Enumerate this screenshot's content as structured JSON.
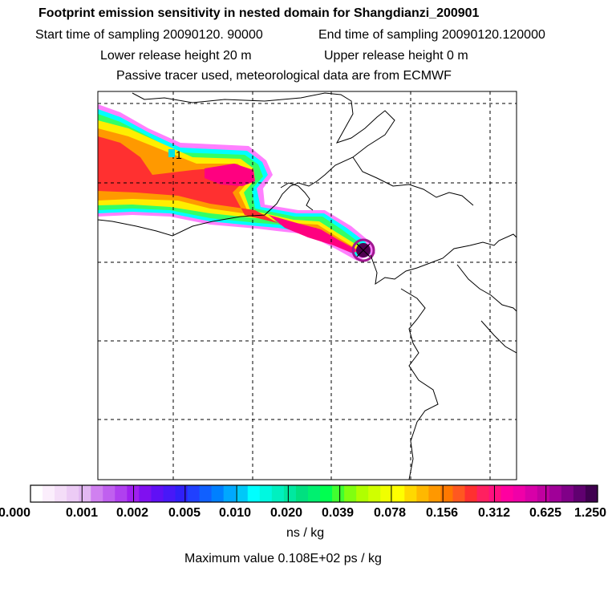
{
  "header": {
    "title": "Footprint emission sensitivity in nested domain for Shangdianzi_200901",
    "start_label": "Start time of sampling 20090120. 90000",
    "end_label": "End time of sampling 20090120.120000",
    "lower_label": "Lower release height   20 m",
    "upper_label": "Upper release height    0 m",
    "tracer_label": "Passive tracer used, meteorological data are from ECMWF"
  },
  "map": {
    "point_label": "1"
  },
  "colorbar": {
    "ticks": [
      "0.000",
      "0.001",
      "0.002",
      "0.005",
      "0.010",
      "0.020",
      "0.039",
      "0.078",
      "0.156",
      "0.312",
      "0.625",
      "1.250"
    ],
    "units": "ns / kg",
    "max_value": "Maximum value  0.108E+02 ps / kg"
  },
  "colors": {
    "plume_low": "#00ffff",
    "plume_mid": "#ffff00",
    "plume_high": "#ff0080",
    "plume_peak": "#500050"
  }
}
